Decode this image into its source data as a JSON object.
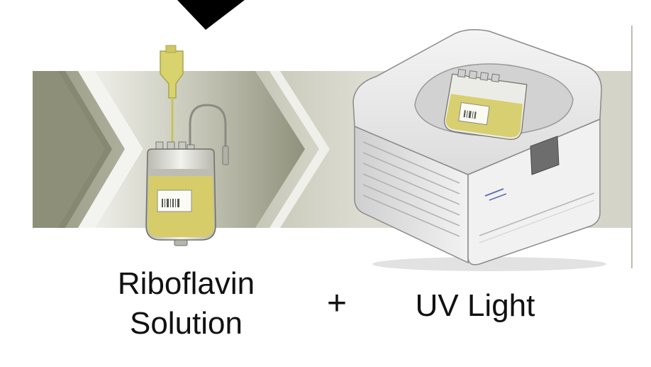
{
  "diagram": {
    "left_label_line1": "Riboflavin",
    "left_label_line2": "Solution",
    "operator": "+",
    "right_label": "UV Light"
  },
  "colors": {
    "band_light": "#d9d9cf",
    "band_dark": "#9a9c87",
    "solution_yellow": "#d6cc6a",
    "device_gray": "#e6e6e6",
    "arrow_black": "#000000"
  }
}
